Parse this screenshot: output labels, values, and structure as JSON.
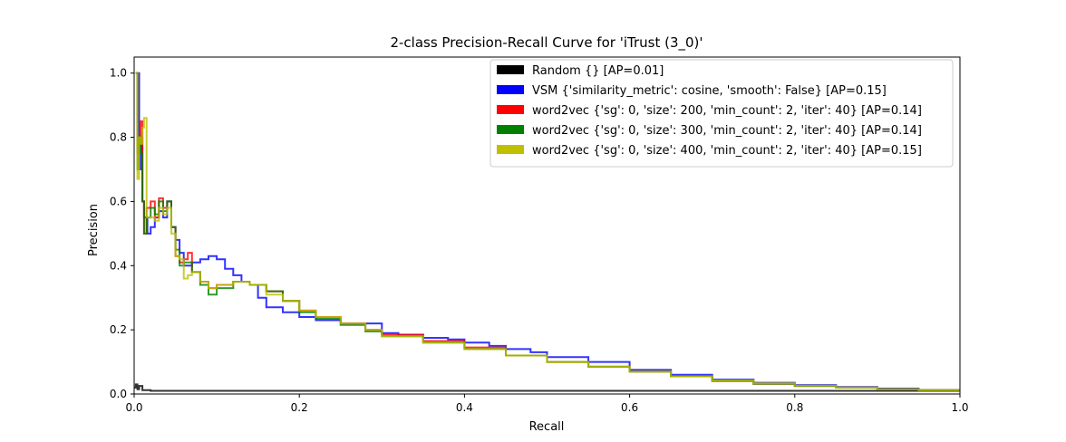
{
  "chart_data": {
    "type": "line",
    "title": "2-class Precision-Recall Curve for 'iTrust (3_0)'",
    "xlabel": "Recall",
    "ylabel": "Precision",
    "xlim": [
      0.0,
      1.0
    ],
    "ylim": [
      0.0,
      1.05
    ],
    "xticks": [
      "0.0",
      "0.2",
      "0.4",
      "0.6",
      "0.8",
      "1.0"
    ],
    "yticks": [
      "0.0",
      "0.2",
      "0.4",
      "0.6",
      "0.8",
      "1.0"
    ],
    "grid": false,
    "legend_position": "top-right",
    "series": [
      {
        "name": "Random {} [AP=0.01]",
        "color": "#000000",
        "x": [
          0.0,
          0.002,
          0.004,
          0.006,
          0.01,
          0.02,
          0.05,
          0.1,
          0.2,
          0.4,
          0.6,
          0.8,
          1.0
        ],
        "y": [
          0.02,
          0.03,
          0.015,
          0.025,
          0.012,
          0.01,
          0.01,
          0.01,
          0.01,
          0.01,
          0.01,
          0.01,
          0.01
        ]
      },
      {
        "name": "VSM {'similarity_metric': cosine, 'smooth': False} [AP=0.15]",
        "color": "#0000ff",
        "x": [
          0.002,
          0.004,
          0.006,
          0.008,
          0.01,
          0.012,
          0.016,
          0.02,
          0.025,
          0.03,
          0.035,
          0.04,
          0.045,
          0.05,
          0.055,
          0.06,
          0.07,
          0.08,
          0.09,
          0.1,
          0.11,
          0.12,
          0.13,
          0.14,
          0.15,
          0.16,
          0.18,
          0.2,
          0.22,
          0.25,
          0.28,
          0.3,
          0.32,
          0.35,
          0.38,
          0.4,
          0.43,
          0.45,
          0.48,
          0.5,
          0.55,
          0.6,
          0.65,
          0.7,
          0.75,
          0.8,
          0.85,
          0.9,
          0.95,
          1.0
        ],
        "y": [
          1.0,
          1.0,
          0.7,
          0.8,
          0.6,
          0.55,
          0.5,
          0.52,
          0.55,
          0.57,
          0.55,
          0.6,
          0.52,
          0.48,
          0.44,
          0.4,
          0.41,
          0.42,
          0.43,
          0.42,
          0.39,
          0.37,
          0.35,
          0.34,
          0.3,
          0.27,
          0.255,
          0.24,
          0.23,
          0.22,
          0.22,
          0.19,
          0.185,
          0.175,
          0.17,
          0.16,
          0.15,
          0.14,
          0.13,
          0.115,
          0.1,
          0.075,
          0.06,
          0.045,
          0.035,
          0.028,
          0.022,
          0.017,
          0.012,
          0.008
        ]
      },
      {
        "name": "word2vec {'sg': 0, 'size': 200, 'min_count': 2, 'iter': 40} [AP=0.14]",
        "color": "#ff0000",
        "x": [
          0.002,
          0.004,
          0.006,
          0.008,
          0.01,
          0.012,
          0.015,
          0.02,
          0.025,
          0.03,
          0.035,
          0.04,
          0.045,
          0.05,
          0.055,
          0.06,
          0.065,
          0.07,
          0.08,
          0.09,
          0.1,
          0.12,
          0.14,
          0.16,
          0.18,
          0.2,
          0.22,
          0.25,
          0.28,
          0.3,
          0.35,
          0.4,
          0.45,
          0.5,
          0.55,
          0.6,
          0.65,
          0.7,
          0.75,
          0.8,
          0.85,
          0.9,
          0.95,
          1.0
        ],
        "y": [
          1.0,
          0.75,
          0.8,
          0.85,
          0.6,
          0.5,
          0.58,
          0.6,
          0.55,
          0.61,
          0.58,
          0.6,
          0.52,
          0.43,
          0.41,
          0.42,
          0.44,
          0.38,
          0.35,
          0.33,
          0.34,
          0.35,
          0.34,
          0.32,
          0.29,
          0.26,
          0.24,
          0.22,
          0.2,
          0.185,
          0.165,
          0.145,
          0.12,
          0.1,
          0.085,
          0.07,
          0.055,
          0.04,
          0.032,
          0.025,
          0.02,
          0.015,
          0.012,
          0.008
        ]
      },
      {
        "name": "word2vec {'sg': 0, 'size': 300, 'min_count': 2, 'iter': 40} [AP=0.14]",
        "color": "#008000",
        "x": [
          0.002,
          0.004,
          0.006,
          0.008,
          0.01,
          0.012,
          0.015,
          0.02,
          0.025,
          0.03,
          0.035,
          0.04,
          0.045,
          0.05,
          0.055,
          0.06,
          0.07,
          0.08,
          0.09,
          0.1,
          0.12,
          0.14,
          0.16,
          0.18,
          0.2,
          0.22,
          0.25,
          0.28,
          0.3,
          0.35,
          0.4,
          0.45,
          0.5,
          0.55,
          0.6,
          0.65,
          0.7,
          0.75,
          0.8,
          0.85,
          0.9,
          0.95,
          1.0
        ],
        "y": [
          1.0,
          0.7,
          0.8,
          0.75,
          0.6,
          0.5,
          0.55,
          0.58,
          0.56,
          0.6,
          0.57,
          0.6,
          0.52,
          0.45,
          0.4,
          0.41,
          0.38,
          0.34,
          0.31,
          0.33,
          0.35,
          0.34,
          0.32,
          0.29,
          0.255,
          0.235,
          0.215,
          0.195,
          0.18,
          0.16,
          0.14,
          0.12,
          0.1,
          0.085,
          0.07,
          0.055,
          0.042,
          0.032,
          0.025,
          0.02,
          0.015,
          0.012,
          0.008
        ]
      },
      {
        "name": "word2vec {'sg': 0, 'size': 400, 'min_count': 2, 'iter': 40} [AP=0.15]",
        "color": "#bfbf00",
        "x": [
          0.002,
          0.004,
          0.006,
          0.008,
          0.01,
          0.012,
          0.015,
          0.02,
          0.025,
          0.03,
          0.035,
          0.04,
          0.045,
          0.05,
          0.055,
          0.06,
          0.065,
          0.07,
          0.08,
          0.09,
          0.1,
          0.12,
          0.14,
          0.16,
          0.18,
          0.2,
          0.22,
          0.25,
          0.28,
          0.3,
          0.35,
          0.4,
          0.45,
          0.5,
          0.55,
          0.6,
          0.65,
          0.7,
          0.75,
          0.8,
          0.85,
          0.9,
          0.95,
          1.0
        ],
        "y": [
          1.0,
          0.67,
          0.8,
          0.78,
          0.83,
          0.86,
          0.55,
          0.55,
          0.54,
          0.58,
          0.56,
          0.58,
          0.5,
          0.43,
          0.42,
          0.36,
          0.37,
          0.38,
          0.35,
          0.33,
          0.34,
          0.35,
          0.34,
          0.31,
          0.29,
          0.26,
          0.24,
          0.22,
          0.2,
          0.18,
          0.16,
          0.14,
          0.12,
          0.1,
          0.085,
          0.07,
          0.055,
          0.042,
          0.033,
          0.026,
          0.02,
          0.015,
          0.012,
          0.008
        ]
      }
    ]
  }
}
